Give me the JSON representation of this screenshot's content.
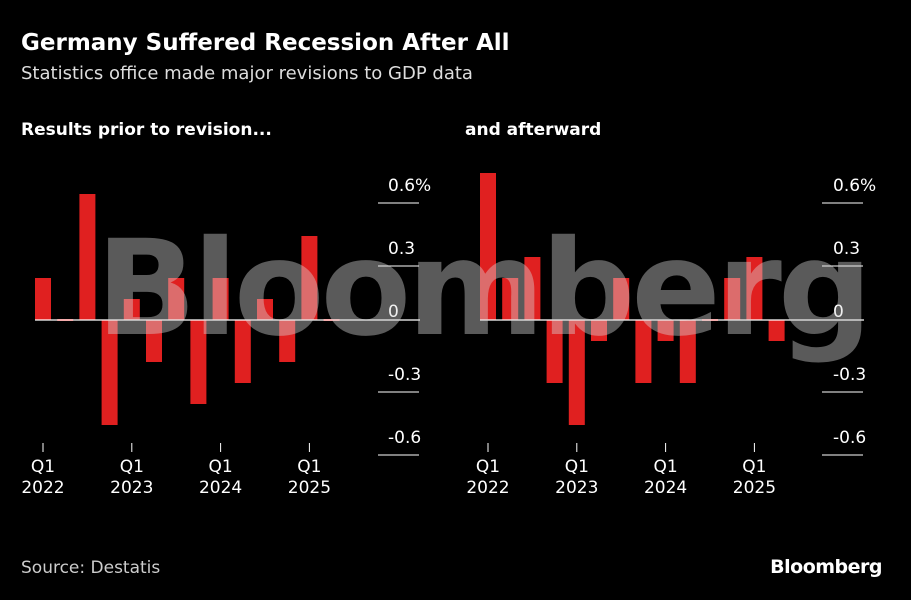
{
  "title": "Germany Suffered Recession After All",
  "subtitle": "Statistics office made major revisions to GDP data",
  "source": "Source: Destatis",
  "brand": "Bloomberg",
  "watermark": "Bloomberg",
  "colors": {
    "background": "#000000",
    "bar": "#e02020",
    "text": "#ffffff",
    "muted": "#cccccc"
  },
  "chart_data": [
    {
      "type": "bar",
      "title": "Results prior to revision...",
      "unit": "%",
      "categories": [
        "Q1 2022",
        "Q2 2022",
        "Q3 2022",
        "Q4 2022",
        "Q1 2023",
        "Q2 2023",
        "Q3 2023",
        "Q4 2023",
        "Q1 2024",
        "Q2 2024",
        "Q3 2024",
        "Q4 2024",
        "Q1 2025",
        "Q2 2025"
      ],
      "values": [
        0.2,
        0.0,
        0.6,
        -0.5,
        0.1,
        -0.2,
        0.2,
        -0.4,
        0.2,
        -0.3,
        0.1,
        -0.2,
        0.4,
        0.0
      ],
      "x_tick_labels": [
        {
          "quarter": "Q1",
          "year": "2022",
          "index": 0
        },
        {
          "quarter": "Q1",
          "year": "2023",
          "index": 4
        },
        {
          "quarter": "Q1",
          "year": "2024",
          "index": 8
        },
        {
          "quarter": "Q1",
          "year": "2025",
          "index": 12
        }
      ],
      "y_ticks": [
        0.6,
        0.3,
        0,
        -0.3,
        -0.6
      ],
      "y_tick_labels": [
        "0.6%",
        "0.3",
        "0",
        "-0.3",
        "-0.6"
      ],
      "ylim": [
        -0.6,
        0.6
      ]
    },
    {
      "type": "bar",
      "title": "and afterward",
      "unit": "%",
      "categories": [
        "Q1 2022",
        "Q2 2022",
        "Q3 2022",
        "Q4 2022",
        "Q1 2023",
        "Q2 2023",
        "Q3 2023",
        "Q4 2023",
        "Q1 2024",
        "Q2 2024",
        "Q3 2024",
        "Q4 2024",
        "Q1 2025",
        "Q2 2025"
      ],
      "values": [
        0.7,
        0.2,
        0.3,
        -0.3,
        -0.5,
        -0.1,
        0.2,
        -0.3,
        -0.1,
        -0.3,
        0.0,
        0.2,
        0.3,
        -0.1
      ],
      "x_tick_labels": [
        {
          "quarter": "Q1",
          "year": "2022",
          "index": 0
        },
        {
          "quarter": "Q1",
          "year": "2023",
          "index": 4
        },
        {
          "quarter": "Q1",
          "year": "2024",
          "index": 8
        },
        {
          "quarter": "Q1",
          "year": "2025",
          "index": 12
        }
      ],
      "y_ticks": [
        0.6,
        0.3,
        0,
        -0.3,
        -0.6
      ],
      "y_tick_labels": [
        "0.6%",
        "0.3",
        "0",
        "-0.3",
        "-0.6"
      ],
      "ylim": [
        -0.6,
        0.6
      ]
    }
  ]
}
